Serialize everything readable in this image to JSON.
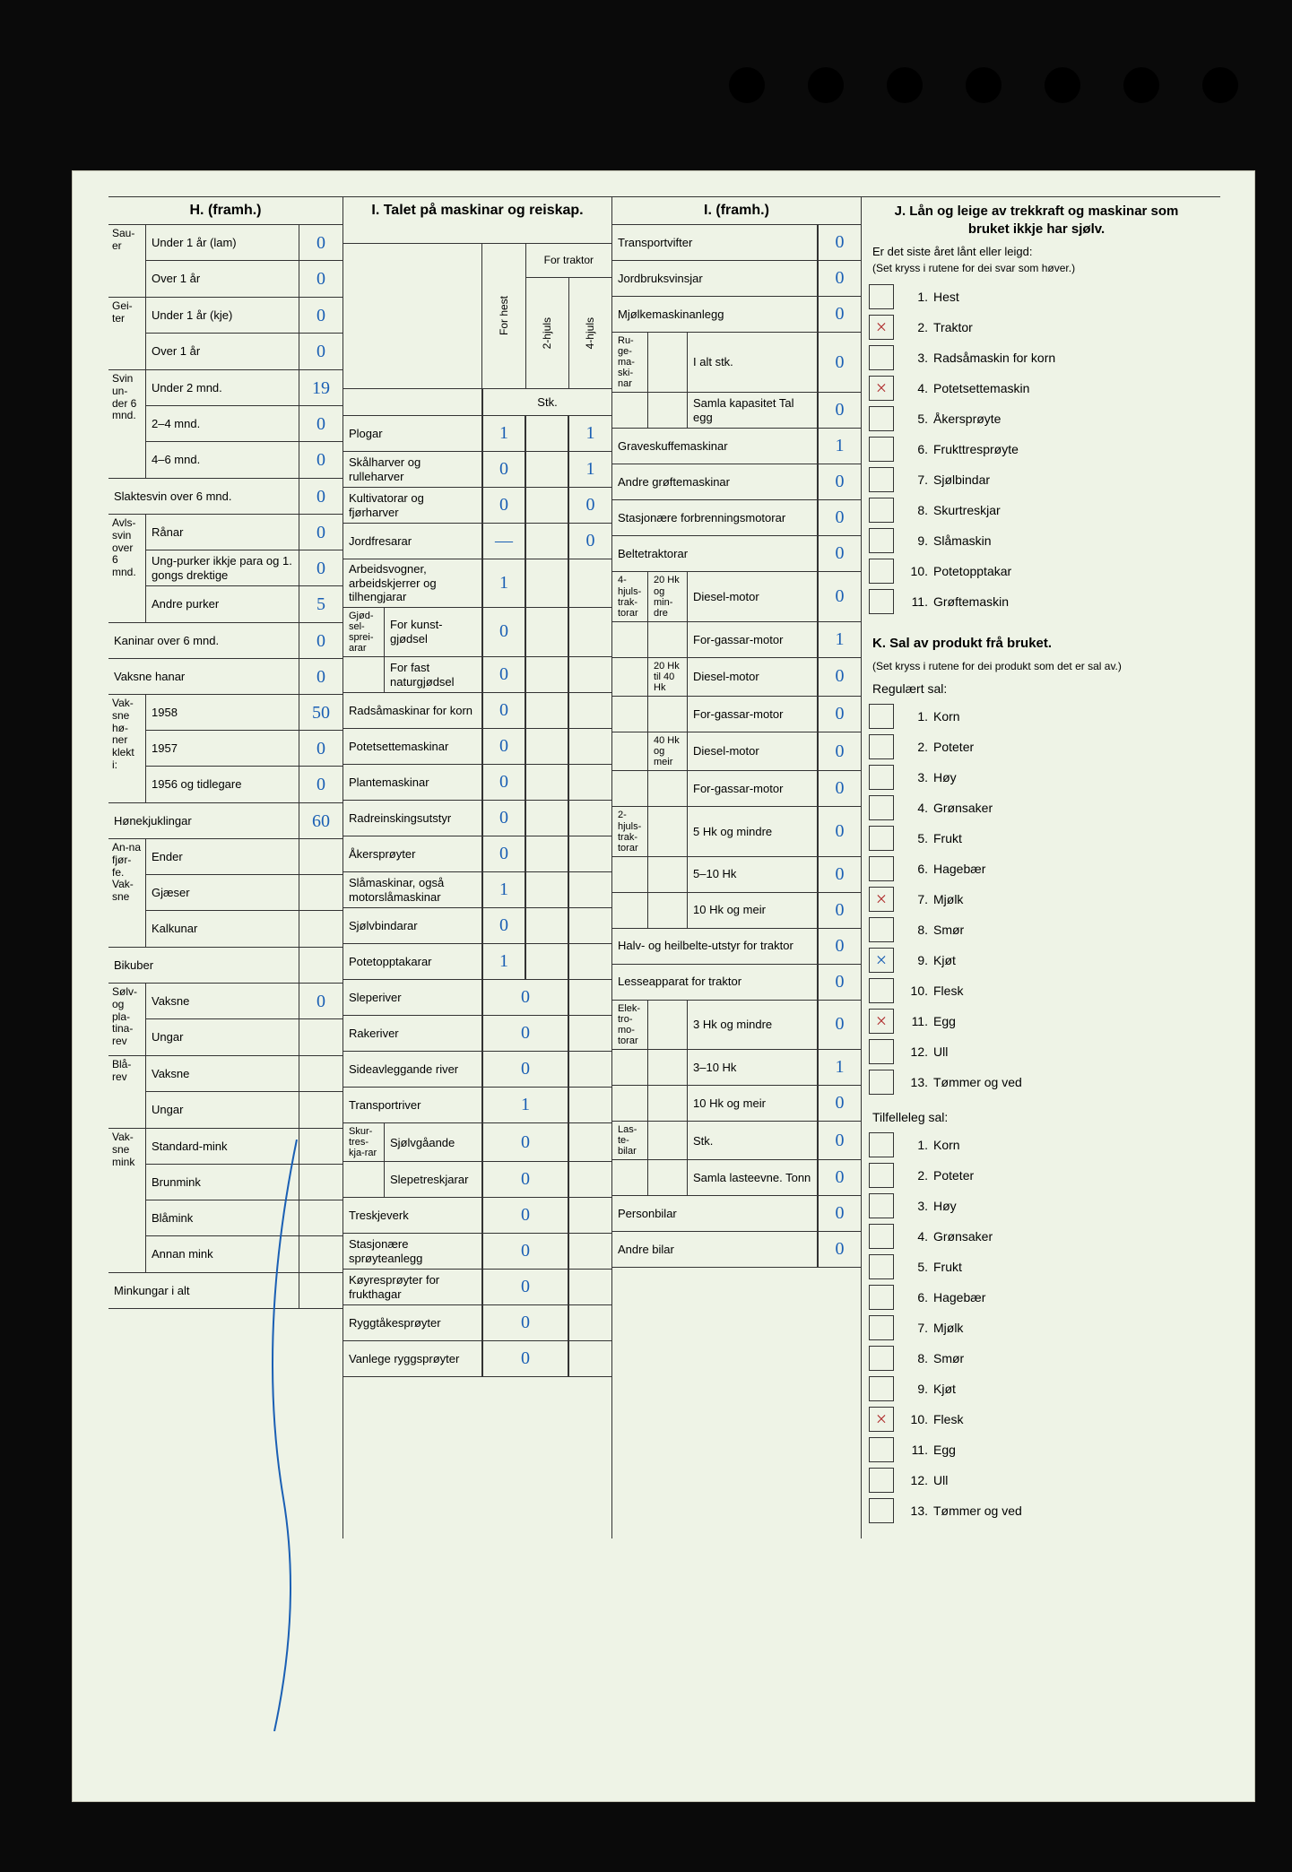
{
  "colors": {
    "paper": "#eef3e6",
    "ink": "#222222",
    "pen_blue": "#1a5fb4",
    "pen_red": "#b03030",
    "border": "#333333"
  },
  "sectionH": {
    "title": "H. (framh.)",
    "groups": [
      {
        "group": "Sau-er",
        "rows": [
          {
            "label": "Under 1 år (lam)",
            "value": "0"
          },
          {
            "label": "Over 1 år",
            "value": "0"
          }
        ]
      },
      {
        "group": "Gei-ter",
        "rows": [
          {
            "label": "Under 1 år (kje)",
            "value": "0"
          },
          {
            "label": "Over 1 år",
            "value": "0"
          }
        ]
      },
      {
        "group": "Svin un-der 6 mnd.",
        "rows": [
          {
            "label": "Under 2 mnd.",
            "value": "19"
          },
          {
            "label": "2–4 mnd.",
            "value": "0"
          },
          {
            "label": "4–6 mnd.",
            "value": "0"
          }
        ]
      },
      {
        "group": "",
        "full": true,
        "rows": [
          {
            "label": "Slaktesvin over 6 mnd.",
            "value": "0"
          }
        ]
      },
      {
        "group": "Avls-svin over 6 mnd.",
        "rows": [
          {
            "label": "Rånar",
            "value": "0"
          },
          {
            "label": "Ung-purker ikkje para og 1. gongs drektige",
            "value": "0"
          },
          {
            "label": "Andre purker",
            "value": "5"
          }
        ]
      },
      {
        "group": "",
        "full": true,
        "rows": [
          {
            "label": "Kaninar over 6 mnd.",
            "value": "0"
          }
        ]
      },
      {
        "group": "",
        "full": true,
        "rows": [
          {
            "label": "Vaksne hanar",
            "value": "0"
          }
        ]
      },
      {
        "group": "Vak-sne hø-ner klekt i:",
        "rows": [
          {
            "label": "1958",
            "value": "50"
          },
          {
            "label": "1957",
            "value": "0"
          },
          {
            "label": "1956 og tidlegare",
            "value": "0"
          }
        ]
      },
      {
        "group": "",
        "full": true,
        "rows": [
          {
            "label": "Hønekjuklingar",
            "value": "60"
          }
        ]
      },
      {
        "group": "An-na fjør-fe. Vak-sne",
        "rows": [
          {
            "label": "Ender",
            "value": ""
          },
          {
            "label": "Gjæser",
            "value": ""
          },
          {
            "label": "Kalkunar",
            "value": ""
          }
        ]
      },
      {
        "group": "",
        "full": true,
        "rows": [
          {
            "label": "Bikuber",
            "value": ""
          }
        ]
      },
      {
        "group": "Sølv- og pla-tina-rev",
        "rows": [
          {
            "label": "Vaksne",
            "value": "0"
          },
          {
            "label": "Ungar",
            "value": ""
          }
        ]
      },
      {
        "group": "Blå-rev",
        "rows": [
          {
            "label": "Vaksne",
            "value": ""
          },
          {
            "label": "Ungar",
            "value": ""
          }
        ]
      },
      {
        "group": "Vak-sne mink",
        "rows": [
          {
            "label": "Standard-mink",
            "value": ""
          },
          {
            "label": "Brunmink",
            "value": ""
          },
          {
            "label": "Blåmink",
            "value": ""
          },
          {
            "label": "Annan mink",
            "value": ""
          }
        ]
      },
      {
        "group": "",
        "full": true,
        "rows": [
          {
            "label": "Minkungar i alt",
            "value": ""
          }
        ]
      }
    ]
  },
  "sectionI1": {
    "title": "I. Talet på maskinar og reiskap.",
    "head": {
      "for_traktor": "For traktor",
      "for_hest": "For hest",
      "h2": "2-hjuls",
      "h4": "4-hjuls",
      "stk": "Stk."
    },
    "rows": [
      {
        "label": "Plogar",
        "v": [
          "1",
          "",
          "1"
        ]
      },
      {
        "label": "Skålharver og rulleharver",
        "v": [
          "0",
          "",
          "1"
        ]
      },
      {
        "label": "Kultivatorar og fjørharver",
        "v": [
          "0",
          "",
          "0"
        ]
      },
      {
        "label": "Jordfresarar",
        "v": [
          "—",
          "",
          "0"
        ]
      },
      {
        "label": "Arbeidsvogner, arbeidskjerrer og tilhengjarar",
        "v": [
          "1",
          "",
          ""
        ]
      },
      {
        "grp": "Gjød-sel-sprei-arar",
        "label": "For kunst-gjødsel",
        "v": [
          "0",
          "",
          ""
        ]
      },
      {
        "grp": "",
        "label": "For fast naturgjødsel",
        "v": [
          "0",
          "",
          ""
        ]
      },
      {
        "label": "Radsåmaskinar for korn",
        "v": [
          "0",
          "",
          ""
        ]
      },
      {
        "label": "Potetsettemaskinar",
        "v": [
          "0",
          "",
          ""
        ]
      },
      {
        "label": "Plantemaskinar",
        "v": [
          "0",
          "",
          ""
        ]
      },
      {
        "label": "Radreinskingsutstyr",
        "v": [
          "0",
          "",
          ""
        ]
      },
      {
        "label": "Åkersprøyter",
        "v": [
          "0",
          "",
          ""
        ]
      },
      {
        "label": "Slåmaskinar, også motorslåmaskinar",
        "v": [
          "1",
          "",
          ""
        ]
      },
      {
        "label": "Sjølvbindarar",
        "v": [
          "0",
          "",
          ""
        ]
      },
      {
        "label": "Potetopptakarar",
        "v": [
          "1",
          "",
          ""
        ]
      },
      {
        "label": "Sleperiver",
        "v2": "0"
      },
      {
        "label": "Rakeriver",
        "v2": "0"
      },
      {
        "label": "Sideavleggande river",
        "v2": "0"
      },
      {
        "label": "Transportriver",
        "v2": "1"
      },
      {
        "grp": "Skur-tres-kja-rar",
        "label": "Sjølvgåande",
        "v2": "0"
      },
      {
        "grp": "",
        "label": "Slepetreskjarar",
        "v2": "0"
      },
      {
        "label": "Treskjeverk",
        "v2": "0"
      },
      {
        "label": "Stasjonære sprøyteanlegg",
        "v2": "0"
      },
      {
        "label": "Køyresprøyter for frukthagar",
        "v2": "0"
      },
      {
        "label": "Ryggtåkesprøyter",
        "v2": "0"
      },
      {
        "label": "Vanlege ryggsprøyter",
        "v2": "0"
      }
    ]
  },
  "sectionI2": {
    "title": "I. (framh.)",
    "rows": [
      {
        "label": "Transportvifter",
        "v": "0"
      },
      {
        "label": "Jordbruksvinsjar",
        "v": "0"
      },
      {
        "label": "Mjølkemaskinanlegg",
        "v": "0"
      },
      {
        "grp": "Ru-ge-ma-ski-nar",
        "sub": "",
        "label": "I alt stk.",
        "v": "0"
      },
      {
        "grp": "",
        "sub": "",
        "label": "Samla kapasitet Tal egg",
        "v": "0"
      },
      {
        "label": "Graveskuffemaskinar",
        "v": "1"
      },
      {
        "label": "Andre grøftemaskinar",
        "v": "0"
      },
      {
        "label": "Stasjonære forbrenningsmotorar",
        "v": "0"
      },
      {
        "label": "Beltetraktorar",
        "v": "0"
      },
      {
        "grp": "4-hjuls-trak-torar",
        "sub": "20 Hk og min-dre",
        "label": "Diesel-motor",
        "v": "0"
      },
      {
        "grp": "",
        "sub": "",
        "label": "For-gassar-motor",
        "v": "1"
      },
      {
        "grp": "",
        "sub": "20 Hk til 40 Hk",
        "label": "Diesel-motor",
        "v": "0"
      },
      {
        "grp": "",
        "sub": "",
        "label": "For-gassar-motor",
        "v": "0"
      },
      {
        "grp": "",
        "sub": "40 Hk og meir",
        "label": "Diesel-motor",
        "v": "0"
      },
      {
        "grp": "",
        "sub": "",
        "label": "For-gassar-motor",
        "v": "0"
      },
      {
        "grp": "2-hjuls-trak-torar",
        "sub": "",
        "label": "5 Hk og mindre",
        "v": "0"
      },
      {
        "grp": "",
        "sub": "",
        "label": "5–10 Hk",
        "v": "0"
      },
      {
        "grp": "",
        "sub": "",
        "label": "10 Hk og meir",
        "v": "0"
      },
      {
        "label": "Halv- og heilbelte-utstyr for traktor",
        "v": "0"
      },
      {
        "label": "Lesseapparat for traktor",
        "v": "0"
      },
      {
        "grp": "Elek-tro-mo-torar",
        "sub": "",
        "label": "3 Hk og mindre",
        "v": "0"
      },
      {
        "grp": "",
        "sub": "",
        "label": "3–10 Hk",
        "v": "1"
      },
      {
        "grp": "",
        "sub": "",
        "label": "10 Hk og meir",
        "v": "0"
      },
      {
        "grp": "Las-te-bilar",
        "sub": "",
        "label": "Stk.",
        "v": "0"
      },
      {
        "grp": "",
        "sub": "",
        "label": "Samla lasteevne. Tonn",
        "v": "0"
      },
      {
        "label": "Personbilar",
        "v": "0"
      },
      {
        "label": "Andre bilar",
        "v": "0"
      }
    ]
  },
  "sectionJ": {
    "title": "J. Lån og leige av trekkraft og maskinar som bruket ikkje har sjølv.",
    "sub1": "Er det siste året lånt eller leigd:",
    "sub2": "(Set kryss i rutene for dei svar som høver.)",
    "items": [
      {
        "n": "1.",
        "label": "Hest",
        "mark": ""
      },
      {
        "n": "2.",
        "label": "Traktor",
        "mark": "×"
      },
      {
        "n": "3.",
        "label": "Radsåmaskin for korn",
        "mark": ""
      },
      {
        "n": "4.",
        "label": "Potetsettemaskin",
        "mark": "×"
      },
      {
        "n": "5.",
        "label": "Åkersprøyte",
        "mark": ""
      },
      {
        "n": "6.",
        "label": "Frukttresprøyte",
        "mark": ""
      },
      {
        "n": "7.",
        "label": "Sjølbindar",
        "mark": ""
      },
      {
        "n": "8.",
        "label": "Skurtreskjar",
        "mark": ""
      },
      {
        "n": "9.",
        "label": "Slåmaskin",
        "mark": ""
      },
      {
        "n": "10.",
        "label": "Potetopptakar",
        "mark": ""
      },
      {
        "n": "11.",
        "label": "Grøftemaskin",
        "mark": ""
      }
    ]
  },
  "sectionK": {
    "title": "K. Sal av produkt frå bruket.",
    "sub": "(Set kryss i rutene for dei produkt som det er sal av.)",
    "hdr1": "Regulært sal:",
    "items1": [
      {
        "n": "1.",
        "label": "Korn",
        "mark": ""
      },
      {
        "n": "2.",
        "label": "Poteter",
        "mark": ""
      },
      {
        "n": "3.",
        "label": "Høy",
        "mark": ""
      },
      {
        "n": "4.",
        "label": "Grønsaker",
        "mark": ""
      },
      {
        "n": "5.",
        "label": "Frukt",
        "mark": ""
      },
      {
        "n": "6.",
        "label": "Hagebær",
        "mark": ""
      },
      {
        "n": "7.",
        "label": "Mjølk",
        "mark": "×"
      },
      {
        "n": "8.",
        "label": "Smør",
        "mark": ""
      },
      {
        "n": "9.",
        "label": "Kjøt",
        "mark": "×",
        "blue": true
      },
      {
        "n": "10.",
        "label": "Flesk",
        "mark": ""
      },
      {
        "n": "11.",
        "label": "Egg",
        "mark": "×"
      },
      {
        "n": "12.",
        "label": "Ull",
        "mark": ""
      },
      {
        "n": "13.",
        "label": "Tømmer og ved",
        "mark": ""
      }
    ],
    "hdr2": "Tilfelleleg sal:",
    "items2": [
      {
        "n": "1.",
        "label": "Korn",
        "mark": ""
      },
      {
        "n": "2.",
        "label": "Poteter",
        "mark": ""
      },
      {
        "n": "3.",
        "label": "Høy",
        "mark": ""
      },
      {
        "n": "4.",
        "label": "Grønsaker",
        "mark": ""
      },
      {
        "n": "5.",
        "label": "Frukt",
        "mark": ""
      },
      {
        "n": "6.",
        "label": "Hagebær",
        "mark": ""
      },
      {
        "n": "7.",
        "label": "Mjølk",
        "mark": ""
      },
      {
        "n": "8.",
        "label": "Smør",
        "mark": ""
      },
      {
        "n": "9.",
        "label": "Kjøt",
        "mark": ""
      },
      {
        "n": "10.",
        "label": "Flesk",
        "mark": "×"
      },
      {
        "n": "11.",
        "label": "Egg",
        "mark": ""
      },
      {
        "n": "12.",
        "label": "Ull",
        "mark": ""
      },
      {
        "n": "13.",
        "label": "Tømmer og ved",
        "mark": ""
      }
    ]
  }
}
